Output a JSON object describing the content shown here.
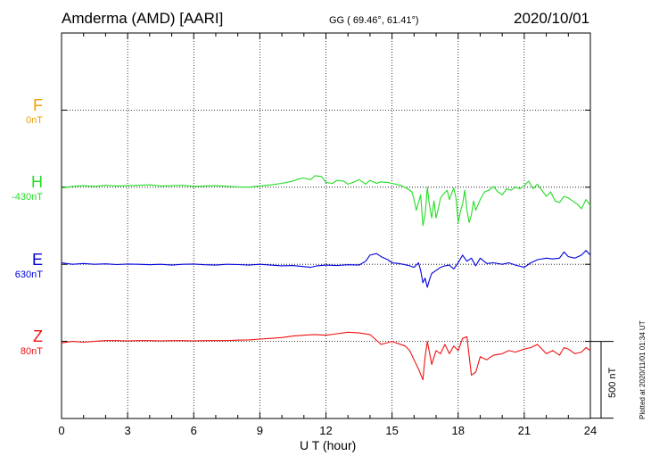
{
  "header": {
    "station": "Amderma (AMD)  [AARI]",
    "coords": "GG ( 69.46°,  61.41°)",
    "date": "2020/10/01"
  },
  "footer": {
    "plotted": "Plotted at 2020/11/01 01:34 UT",
    "scale": "500 nT"
  },
  "chart_data": {
    "type": "line",
    "xlabel": "U T (hour)",
    "xlim": [
      0,
      24
    ],
    "xticks": [
      "0",
      "3",
      "6",
      "9",
      "12",
      "15",
      "18",
      "21",
      "24"
    ],
    "ylabel": "",
    "scale_bar_nT": 500,
    "grid": true,
    "series": [
      {
        "name": "F",
        "offset_label": "0nT",
        "color": "#f0a000",
        "baseline_row": 1,
        "x": [],
        "y": []
      },
      {
        "name": "H",
        "offset_label": "-430nT",
        "color": "#22dd22",
        "baseline_row": 2,
        "x": [
          0,
          0.5,
          1,
          1.5,
          2,
          2.5,
          3,
          3.5,
          4,
          4.5,
          5,
          5.5,
          6,
          6.5,
          7,
          7.5,
          8,
          8.5,
          9,
          9.5,
          10,
          10.5,
          10.8,
          11,
          11.3,
          11.5,
          11.8,
          12,
          12.3,
          12.5,
          12.8,
          13,
          13.3,
          13.5,
          13.8,
          14,
          14.3,
          14.5,
          14.8,
          15,
          15.3,
          15.5,
          15.7,
          15.9,
          16,
          16.1,
          16.2,
          16.3,
          16.4,
          16.5,
          16.6,
          16.7,
          16.8,
          16.9,
          17,
          17.1,
          17.2,
          17.3,
          17.5,
          17.6,
          17.8,
          17.9,
          18,
          18.1,
          18.2,
          18.3,
          18.4,
          18.5,
          18.6,
          18.7,
          18.8,
          19,
          19.2,
          19.4,
          19.6,
          19.8,
          20,
          20.2,
          20.4,
          20.6,
          20.8,
          21,
          21.2,
          21.4,
          21.6,
          21.8,
          22,
          22.2,
          22.4,
          22.6,
          22.8,
          23,
          23.2,
          23.4,
          23.6,
          23.8,
          24
        ],
        "y": [
          -5,
          5,
          10,
          5,
          12,
          8,
          10,
          12,
          15,
          8,
          10,
          12,
          5,
          8,
          10,
          6,
          2,
          0,
          8,
          15,
          25,
          40,
          55,
          60,
          48,
          75,
          70,
          30,
          25,
          45,
          40,
          20,
          35,
          50,
          20,
          45,
          25,
          35,
          30,
          25,
          15,
          5,
          -10,
          -30,
          -80,
          -150,
          -100,
          -50,
          -250,
          -180,
          0,
          -120,
          -200,
          -90,
          -200,
          -140,
          -70,
          -50,
          -20,
          -80,
          -5,
          -70,
          -230,
          -160,
          -110,
          -20,
          -150,
          -230,
          -180,
          -90,
          -150,
          -80,
          -30,
          -20,
          5,
          -30,
          -50,
          -10,
          -20,
          0,
          -10,
          10,
          40,
          -10,
          20,
          -20,
          -60,
          -30,
          -90,
          -100,
          -60,
          -70,
          -90,
          -110,
          -140,
          -80,
          -120
        ]
      },
      {
        "name": "E",
        "offset_label": "630nT",
        "color": "#0000dd",
        "baseline_row": 3,
        "x": [
          0,
          0.5,
          1,
          1.5,
          2,
          2.5,
          3,
          3.5,
          4,
          4.5,
          5,
          5.5,
          6,
          6.5,
          7,
          7.5,
          8,
          8.5,
          9,
          9.5,
          10,
          10.5,
          11,
          11.3,
          11.6,
          12,
          12.5,
          13,
          13.5,
          13.8,
          14,
          14.3,
          14.5,
          14.8,
          15,
          15.3,
          15.5,
          15.8,
          16,
          16.2,
          16.3,
          16.4,
          16.5,
          16.6,
          16.7,
          16.8,
          17,
          17.2,
          17.4,
          17.6,
          17.8,
          18,
          18.2,
          18.4,
          18.6,
          18.8,
          19,
          19.3,
          19.6,
          20,
          20.3,
          20.6,
          21,
          21.3,
          21.6,
          22,
          22.3,
          22.6,
          22.8,
          23,
          23.3,
          23.6,
          23.8,
          24
        ],
        "y": [
          10,
          0,
          5,
          0,
          3,
          -2,
          2,
          0,
          -3,
          0,
          -5,
          0,
          2,
          -3,
          -5,
          0,
          -2,
          -5,
          0,
          -5,
          -10,
          -8,
          -15,
          -20,
          -10,
          -5,
          -8,
          -3,
          -5,
          20,
          60,
          70,
          50,
          30,
          10,
          5,
          0,
          -10,
          -20,
          10,
          -40,
          -120,
          -90,
          -150,
          -100,
          -60,
          -40,
          -20,
          -10,
          -5,
          -30,
          10,
          60,
          20,
          40,
          -10,
          40,
          5,
          10,
          0,
          10,
          -5,
          -20,
          10,
          30,
          40,
          35,
          40,
          80,
          50,
          40,
          60,
          90,
          60
        ]
      },
      {
        "name": "Z",
        "offset_label": "80nT",
        "color": "#ee1111",
        "baseline_row": 4,
        "x": [
          0,
          0.5,
          1,
          1.5,
          2,
          2.5,
          3,
          3.5,
          4,
          4.5,
          5,
          5.5,
          6,
          6.5,
          7,
          7.5,
          8,
          8.5,
          9,
          9.5,
          10,
          10.5,
          11,
          11.5,
          12,
          12.5,
          13,
          13.5,
          14,
          14.5,
          15,
          15.3,
          15.6,
          15.8,
          16,
          16.2,
          16.4,
          16.5,
          16.6,
          16.8,
          17,
          17.2,
          17.4,
          17.6,
          17.8,
          18,
          18.2,
          18.4,
          18.6,
          18.8,
          19,
          19.3,
          19.6,
          20,
          20.3,
          20.6,
          21,
          21.3,
          21.6,
          22,
          22.3,
          22.6,
          22.8,
          23,
          23.3,
          23.6,
          23.8,
          24
        ],
        "y": [
          -10,
          0,
          -5,
          0,
          5,
          5,
          3,
          5,
          5,
          3,
          5,
          5,
          3,
          5,
          5,
          5,
          8,
          10,
          15,
          20,
          25,
          35,
          40,
          45,
          40,
          50,
          60,
          55,
          45,
          -20,
          0,
          -15,
          -30,
          -60,
          -120,
          -180,
          -250,
          -100,
          0,
          -150,
          -60,
          -80,
          -20,
          -80,
          -30,
          -60,
          20,
          30,
          -220,
          -200,
          -100,
          -120,
          -90,
          -80,
          -60,
          -70,
          -50,
          -40,
          -20,
          -80,
          -60,
          -90,
          -40,
          -50,
          -80,
          -70,
          -40,
          -60
        ]
      }
    ]
  }
}
